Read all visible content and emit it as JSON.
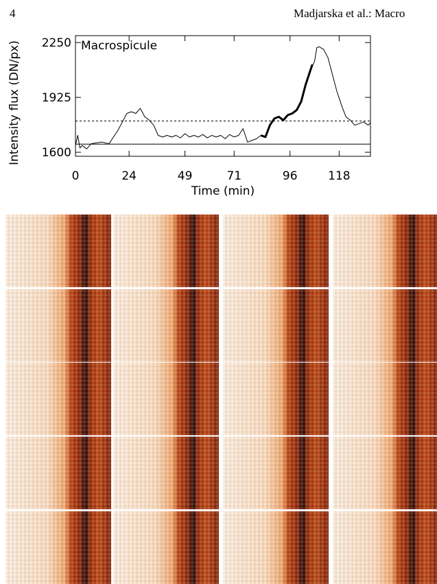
{
  "header": {
    "page_number": "4",
    "running_head": "Madjarska et al.: Macro"
  },
  "chart_data": {
    "type": "line",
    "label": "Macrospicule",
    "xlabel": "Time (min)",
    "ylabel": "Intensity flux (DN/px)",
    "xlim": [
      0,
      132
    ],
    "ylim": [
      1576,
      2291
    ],
    "xticks": [
      0,
      24,
      49,
      71,
      96,
      118
    ],
    "yticks": [
      1600,
      1925,
      2250
    ],
    "series": [
      {
        "color": "#000000",
        "width": 1,
        "x": [
          0,
          1,
          2,
          3,
          5,
          7,
          9,
          12,
          15,
          17,
          19,
          21,
          23,
          25,
          27,
          29,
          31,
          33,
          35,
          37,
          39,
          41,
          43,
          45,
          47,
          49,
          51,
          53,
          55,
          57,
          59,
          61,
          63,
          65,
          67,
          69,
          71,
          73,
          75,
          77,
          79,
          81,
          83,
          85,
          87,
          89,
          91,
          93,
          95,
          97,
          99,
          101,
          103,
          105,
          107,
          108,
          109,
          111,
          113,
          115,
          117,
          119,
          121,
          123,
          125,
          127,
          129,
          131,
          132
        ],
        "values": [
          1640,
          1700,
          1625,
          1640,
          1620,
          1650,
          1655,
          1660,
          1650,
          1690,
          1730,
          1780,
          1830,
          1840,
          1830,
          1860,
          1810,
          1790,
          1760,
          1700,
          1690,
          1700,
          1690,
          1700,
          1685,
          1710,
          1690,
          1700,
          1690,
          1705,
          1685,
          1700,
          1690,
          1700,
          1680,
          1705,
          1690,
          1700,
          1740,
          1660,
          1670,
          1680,
          1700,
          1690,
          1760,
          1800,
          1810,
          1790,
          1820,
          1830,
          1850,
          1900,
          2000,
          2080,
          2140,
          2220,
          2225,
          2210,
          2160,
          2060,
          1960,
          1880,
          1810,
          1790,
          1760,
          1770,
          1780,
          1760,
          1775
        ]
      },
      {
        "color": "#000000",
        "width": 3,
        "x": [
          83,
          85,
          87,
          89,
          91,
          93,
          95,
          97,
          99,
          101,
          103,
          105,
          106
        ],
        "values": [
          1700,
          1690,
          1760,
          1800,
          1810,
          1790,
          1820,
          1830,
          1850,
          1900,
          2000,
          2080,
          2120
        ]
      }
    ],
    "hlines": [
      {
        "value": 1785,
        "dashed": true
      },
      {
        "value": 1648,
        "dashed": false
      }
    ]
  }
}
